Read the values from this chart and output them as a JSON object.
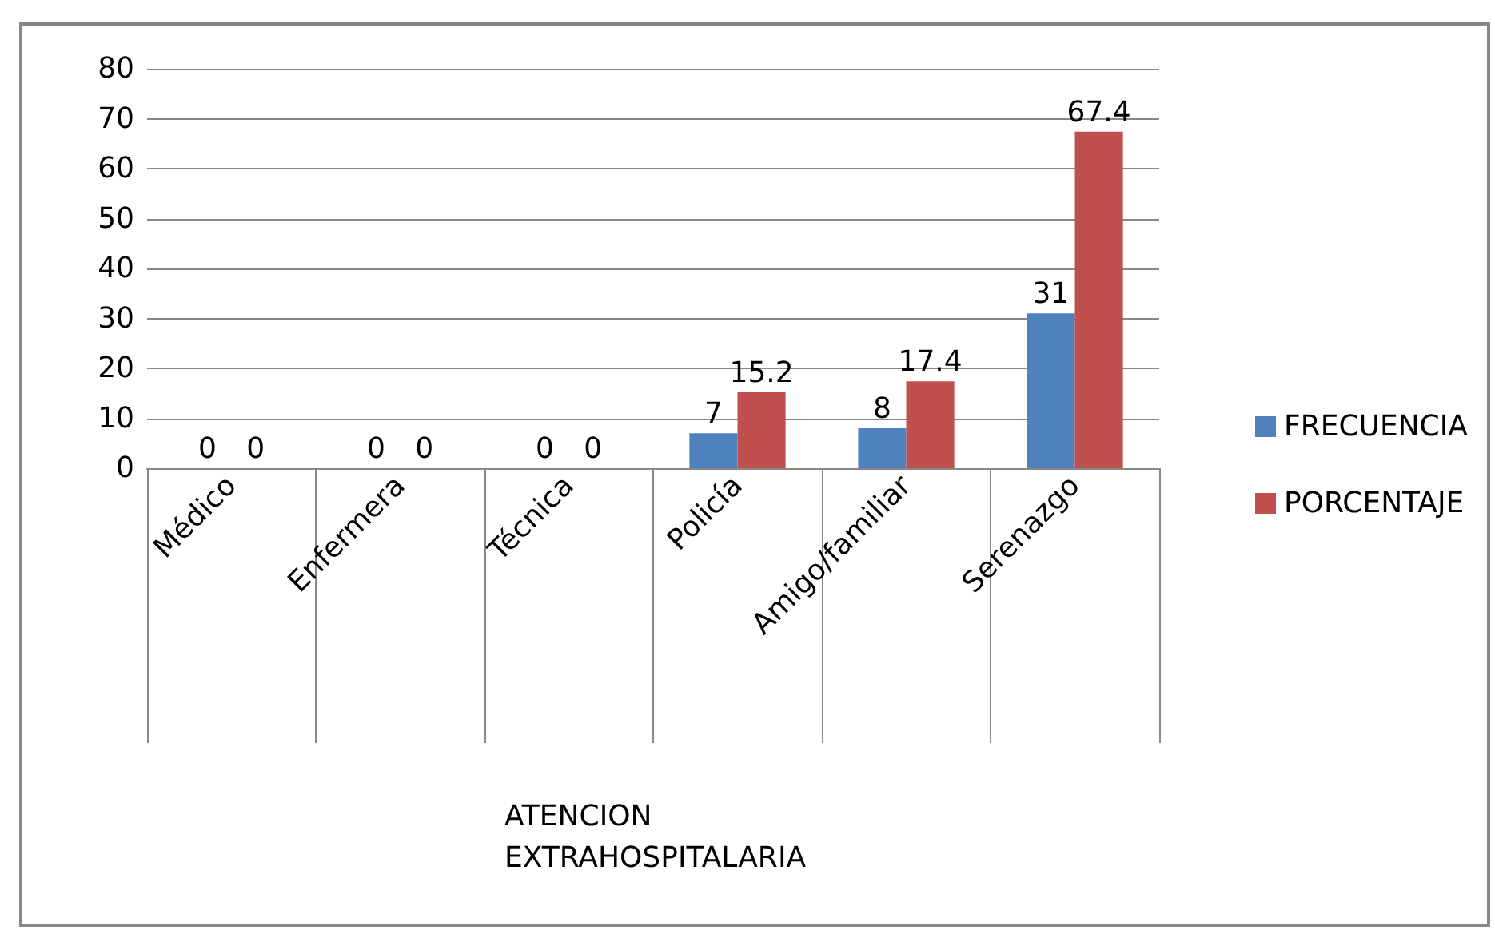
{
  "chart_data": {
    "type": "bar",
    "annotations": [
      "ATENCION\nEXTRAHOSPITALARIA"
    ],
    "categories": [
      "Médico",
      "Enfermera",
      "Técnica",
      "Policía",
      "Amigo/familiar",
      "Serenazgo"
    ],
    "series": [
      {
        "name": "FRECUENCIA",
        "color": "#4f81bd",
        "values": [
          0,
          0,
          0,
          7,
          8,
          31
        ]
      },
      {
        "name": "PORCENTAJE",
        "color": "#c0504d",
        "values": [
          0,
          0,
          0,
          15.2,
          17.4,
          67.4
        ]
      }
    ],
    "ylim": [
      0,
      80
    ],
    "yticks": [
      0,
      10,
      20,
      30,
      40,
      50,
      60,
      70,
      80
    ],
    "grid": "y",
    "legend": "right",
    "data_labels": true
  }
}
